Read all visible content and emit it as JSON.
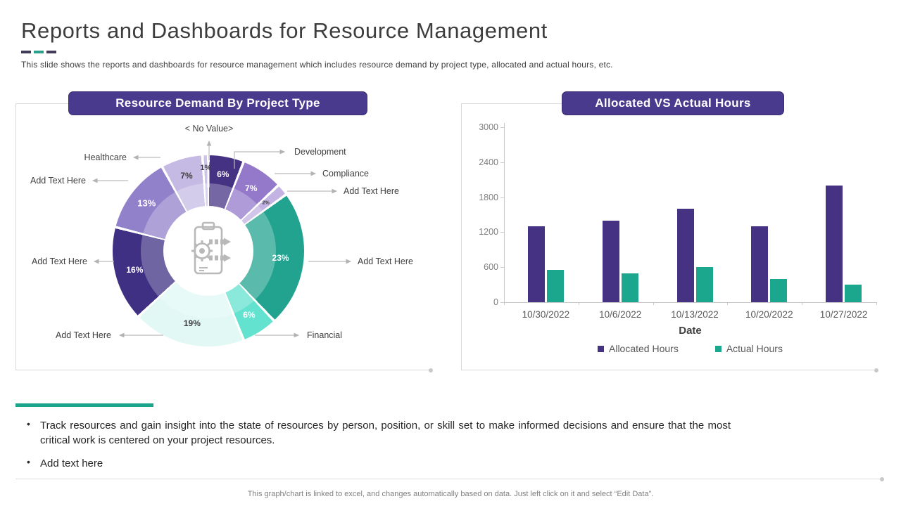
{
  "header": {
    "title": "Reports and Dashboards for Resource Management",
    "subtitle": "This slide shows the reports and dashboards for resource management which includes resource demand by project type,  allocated and actual hours, etc.",
    "accent_colors": [
      "#3f3a55",
      "#2ba18c",
      "#443b59"
    ]
  },
  "donut_panel": {
    "banner": "Resource Demand By Project Type"
  },
  "bars_panel": {
    "banner": "Allocated VS Actual Hours"
  },
  "chart_data": [
    {
      "type": "pie",
      "title": "Resource Demand By Project Type",
      "unit": "percent",
      "center_icon": "clipboard-gear-arrows-icon",
      "segments": [
        {
          "label": "Development",
          "value": 6,
          "color": "#463283",
          "pct_text": "6%",
          "pct_text_color": "#ffffff"
        },
        {
          "label": "Compliance",
          "value": 7,
          "color": "#9478c9",
          "pct_text": "7%",
          "pct_text_color": "#ffffff"
        },
        {
          "label": "Add Text Here",
          "value": 2,
          "color": "#c2b3e2",
          "pct_text": "2%",
          "pct_text_color": "#3f3f3f"
        },
        {
          "label": "Add Text Here",
          "value": 23,
          "color": "#21a390",
          "pct_text": "23%",
          "pct_text_color": "#ffffff"
        },
        {
          "label": "Financial",
          "value": 6,
          "color": "#62e2cf",
          "pct_text": "6%",
          "pct_text_color": "#ffffff"
        },
        {
          "label": "Add Text Here",
          "value": 19,
          "color": "#e1f8f5",
          "pct_text": "19%",
          "pct_text_color": "#3f3f3f"
        },
        {
          "label": "Add Text Here",
          "value": 16,
          "color": "#3f3084",
          "pct_text": "16%",
          "pct_text_color": "#ffffff"
        },
        {
          "label": "Add Text Here",
          "value": 13,
          "color": "#9180ca",
          "pct_text": "13%",
          "pct_text_color": "#ffffff"
        },
        {
          "label": "Healthcare",
          "value": 7,
          "color": "#c5bae4",
          "pct_text": "7%",
          "pct_text_color": "#3f3f3f"
        },
        {
          "label": "< No Value>",
          "value": 1,
          "color": "#cdc5e8",
          "pct_text": "1%",
          "pct_text_color": "#3f3f3f"
        }
      ]
    },
    {
      "type": "bar",
      "title": "Allocated VS Actual Hours",
      "categories": [
        "10/30/2022",
        "10/6/2022",
        "10/13/2022",
        "10/20/2022",
        "10/27/2022"
      ],
      "series": [
        {
          "name": "Allocated Hours",
          "color": "#463283",
          "values": [
            1300,
            1400,
            1600,
            1300,
            2000
          ]
        },
        {
          "name": "Actual Hours",
          "color": "#1aa78e",
          "values": [
            550,
            500,
            600,
            400,
            300
          ]
        }
      ],
      "xlabel": "Date",
      "ylim": [
        0,
        3000
      ],
      "yticks": [
        0,
        600,
        1200,
        1800,
        2400,
        3000
      ],
      "grid": false,
      "legend_position": "bottom"
    }
  ],
  "notes": {
    "bullets": [
      "Track resources and gain insight into the state of resources by person, position, or skill set to make informed decisions and ensure that the most critical work is centered on your project resources.",
      "Add text here"
    ]
  },
  "footer": {
    "text": "This graph/chart is linked to excel,  and changes automatically based on data. Just left click on it and select “Edit Data”."
  }
}
